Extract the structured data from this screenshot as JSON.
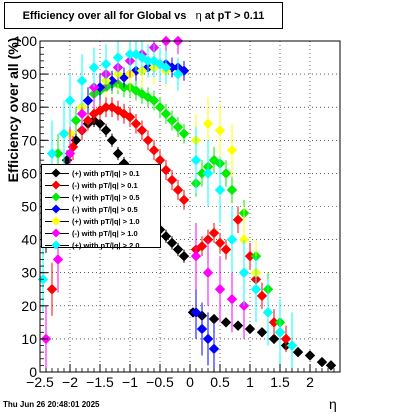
{
  "title_main": "Efficiency over all for Global vs",
  "title_var": "η",
  "title_cut": "at pT > 0.11",
  "footer": "Thu Jun 26 20:48:01 2025",
  "chart_data": {
    "type": "scatter",
    "title": "Efficiency over all for Global vs η at pT > 0.11",
    "xlabel": "η",
    "ylabel": "Efficiency over all (%)",
    "xlim": [
      -2.5,
      2.5
    ],
    "ylim": [
      0,
      100
    ],
    "xticks": [
      -2.5,
      -2,
      -1.5,
      -1,
      -0.5,
      0,
      0.5,
      1,
      1.5,
      2
    ],
    "xtick_labels": [
      "−2.5",
      "−2",
      "−1.5",
      "−1",
      "−0.5",
      "0",
      "0.5",
      "1",
      "1.5",
      "2"
    ],
    "yticks": [
      0,
      10,
      20,
      30,
      40,
      50,
      60,
      70,
      80,
      90,
      100
    ],
    "ytick_labels": [
      "0",
      "10",
      "20",
      "30",
      "40",
      "50",
      "60",
      "70",
      "80",
      "90",
      "100"
    ],
    "grid": true,
    "legend_position": "center-left",
    "series": [
      {
        "name": "(+) with pT/|q| > 0.1",
        "color": "#000000",
        "x": [
          -2.4,
          -2.2,
          -2.05,
          -1.9,
          -1.8,
          -1.7,
          -1.6,
          -1.5,
          -1.4,
          -1.3,
          -1.2,
          -1.1,
          -1.0,
          -0.9,
          -0.8,
          -0.7,
          -0.6,
          -0.5,
          -0.4,
          -0.3,
          -0.2,
          -0.1,
          0.05,
          0.2,
          0.4,
          0.6,
          0.8,
          1.0,
          1.2,
          1.4,
          1.6,
          1.8,
          2.0,
          2.2,
          2.35
        ],
        "y": [
          40,
          55,
          64,
          70,
          73,
          75,
          76,
          75,
          73,
          70,
          66,
          63,
          60,
          56,
          52,
          49,
          46,
          43,
          41,
          39,
          37,
          35,
          18,
          17,
          16,
          15,
          14,
          13,
          12,
          10,
          8,
          6,
          5,
          3,
          2
        ],
        "err": [
          4,
          3,
          3,
          2,
          2,
          2,
          2,
          2,
          2,
          2,
          2,
          2,
          2,
          2,
          2,
          2,
          2,
          2,
          2,
          2,
          2,
          2,
          1,
          1,
          1,
          1,
          1,
          1,
          1,
          1,
          1,
          1,
          1,
          1,
          1
        ]
      },
      {
        "name": "(-) with pT/|q| > 0.1",
        "color": "#ff0000",
        "x": [
          -2.3,
          -2.1,
          -1.95,
          -1.8,
          -1.7,
          -1.6,
          -1.5,
          -1.4,
          -1.3,
          -1.2,
          -1.1,
          -1.0,
          -0.9,
          -0.8,
          -0.7,
          -0.6,
          -0.5,
          -0.4,
          -0.3,
          -0.2,
          -0.1,
          0.1,
          0.2,
          0.3,
          0.4,
          0.5,
          0.6,
          0.8,
          1.0,
          1.1,
          1.2,
          1.4,
          1.5,
          1.6
        ],
        "y": [
          25,
          60,
          68,
          73,
          76,
          78,
          79,
          80,
          80,
          79,
          78,
          77,
          75,
          73,
          70,
          67,
          64,
          61,
          58,
          55,
          52,
          37,
          38,
          40,
          42,
          39,
          37,
          46,
          35,
          28,
          23,
          15,
          12,
          10
        ],
        "err": [
          8,
          5,
          4,
          3,
          3,
          3,
          3,
          3,
          3,
          3,
          3,
          3,
          3,
          3,
          3,
          3,
          3,
          3,
          3,
          3,
          3,
          3,
          3,
          3,
          3,
          3,
          3,
          4,
          4,
          4,
          4,
          4,
          4,
          4
        ]
      },
      {
        "name": "(+) with pT/|q| > 0.5",
        "color": "#00ee00",
        "x": [
          -2.2,
          -2.0,
          -1.9,
          -1.8,
          -1.7,
          -1.6,
          -1.5,
          -1.4,
          -1.3,
          -1.2,
          -1.1,
          -1.0,
          -0.9,
          -0.8,
          -0.7,
          -0.6,
          -0.5,
          -0.4,
          -0.3,
          -0.2,
          -0.1,
          0.1,
          0.2,
          0.3,
          0.4,
          0.5,
          0.6,
          0.7,
          0.9,
          1.1,
          1.3,
          1.5,
          1.7
        ],
        "y": [
          66,
          72,
          76,
          80,
          82,
          84,
          85,
          86,
          87,
          87,
          86,
          86,
          85,
          84,
          83,
          82,
          80,
          78,
          76,
          74,
          72,
          57,
          60,
          62,
          64,
          63,
          60,
          55,
          48,
          35,
          25,
          15,
          8
        ],
        "err": [
          6,
          4,
          4,
          3,
          3,
          3,
          3,
          3,
          3,
          3,
          3,
          3,
          3,
          3,
          3,
          3,
          3,
          3,
          3,
          3,
          3,
          4,
          4,
          4,
          4,
          4,
          4,
          4,
          4,
          4,
          5,
          5,
          5
        ]
      },
      {
        "name": "(-) with pT/|q| > 0.5",
        "color": "#0000ff",
        "x": [
          -1.7,
          -1.5,
          -1.3,
          -1.1,
          -1.0,
          -0.9,
          -0.8,
          -0.7,
          -0.6,
          -0.5,
          -0.4,
          -0.3,
          -0.2,
          -0.1,
          0.1,
          0.2,
          0.3,
          0.4
        ],
        "y": [
          82,
          86,
          88,
          89,
          90,
          91,
          91,
          92,
          92,
          93,
          93,
          92,
          92,
          91,
          18,
          13,
          10,
          7
        ],
        "err": [
          4,
          4,
          3,
          3,
          3,
          3,
          3,
          3,
          3,
          3,
          3,
          3,
          3,
          3,
          8,
          8,
          8,
          8
        ]
      },
      {
        "name": "(+) with pT/|q| > 1.0",
        "color": "#ffff00",
        "x": [
          -2.0,
          -1.8,
          -1.6,
          -1.4,
          -1.2,
          -1.0,
          -0.8,
          -0.6,
          -0.4,
          -0.2,
          0.1,
          0.3,
          0.5,
          0.7,
          0.9,
          1.1,
          1.3,
          1.5,
          1.7
        ],
        "y": [
          72,
          80,
          86,
          88,
          90,
          90,
          91,
          92,
          91,
          90,
          70,
          75,
          73,
          67,
          40,
          30,
          18,
          12,
          8
        ],
        "err": [
          8,
          6,
          5,
          5,
          5,
          5,
          5,
          5,
          5,
          5,
          8,
          8,
          8,
          8,
          10,
          10,
          10,
          10,
          10
        ]
      },
      {
        "name": "(-) with pT/|q| > 1.0",
        "color": "#ff00ff",
        "x": [
          -2.4,
          -2.2,
          -2.0,
          -1.8,
          -1.6,
          -1.4,
          -1.2,
          -1.0,
          -0.8,
          -0.6,
          -0.4,
          -0.2,
          0.1,
          0.3,
          0.5,
          0.7,
          0.9
        ],
        "y": [
          10,
          34,
          66,
          78,
          86,
          90,
          92,
          94,
          96,
          98,
          100,
          100,
          35,
          30,
          25,
          22,
          20
        ],
        "err": [
          10,
          10,
          8,
          6,
          6,
          5,
          5,
          5,
          4,
          4,
          4,
          4,
          10,
          10,
          10,
          10,
          10
        ]
      },
      {
        "name": "(+) with pT/|q| > 2.0",
        "color": "#00ffff",
        "x": [
          -2.45,
          -2.3,
          -2.1,
          -2.0,
          -1.8,
          -1.6,
          -1.4,
          -1.2,
          -1.0,
          -0.9,
          -0.8,
          -0.7,
          -0.6,
          -0.5,
          -0.4,
          -0.2,
          0.1,
          0.3,
          0.5,
          0.7,
          0.9,
          1.1,
          1.3,
          1.5,
          1.7
        ],
        "y": [
          28,
          66,
          72,
          82,
          88,
          92,
          93,
          95,
          96,
          96,
          95,
          94,
          94,
          93,
          92,
          90,
          64,
          60,
          55,
          40,
          30,
          25,
          18,
          12,
          8
        ],
        "err": [
          10,
          10,
          10,
          8,
          8,
          6,
          6,
          6,
          5,
          5,
          5,
          5,
          5,
          5,
          5,
          5,
          10,
          10,
          10,
          10,
          10,
          10,
          10,
          10,
          10
        ]
      }
    ]
  }
}
